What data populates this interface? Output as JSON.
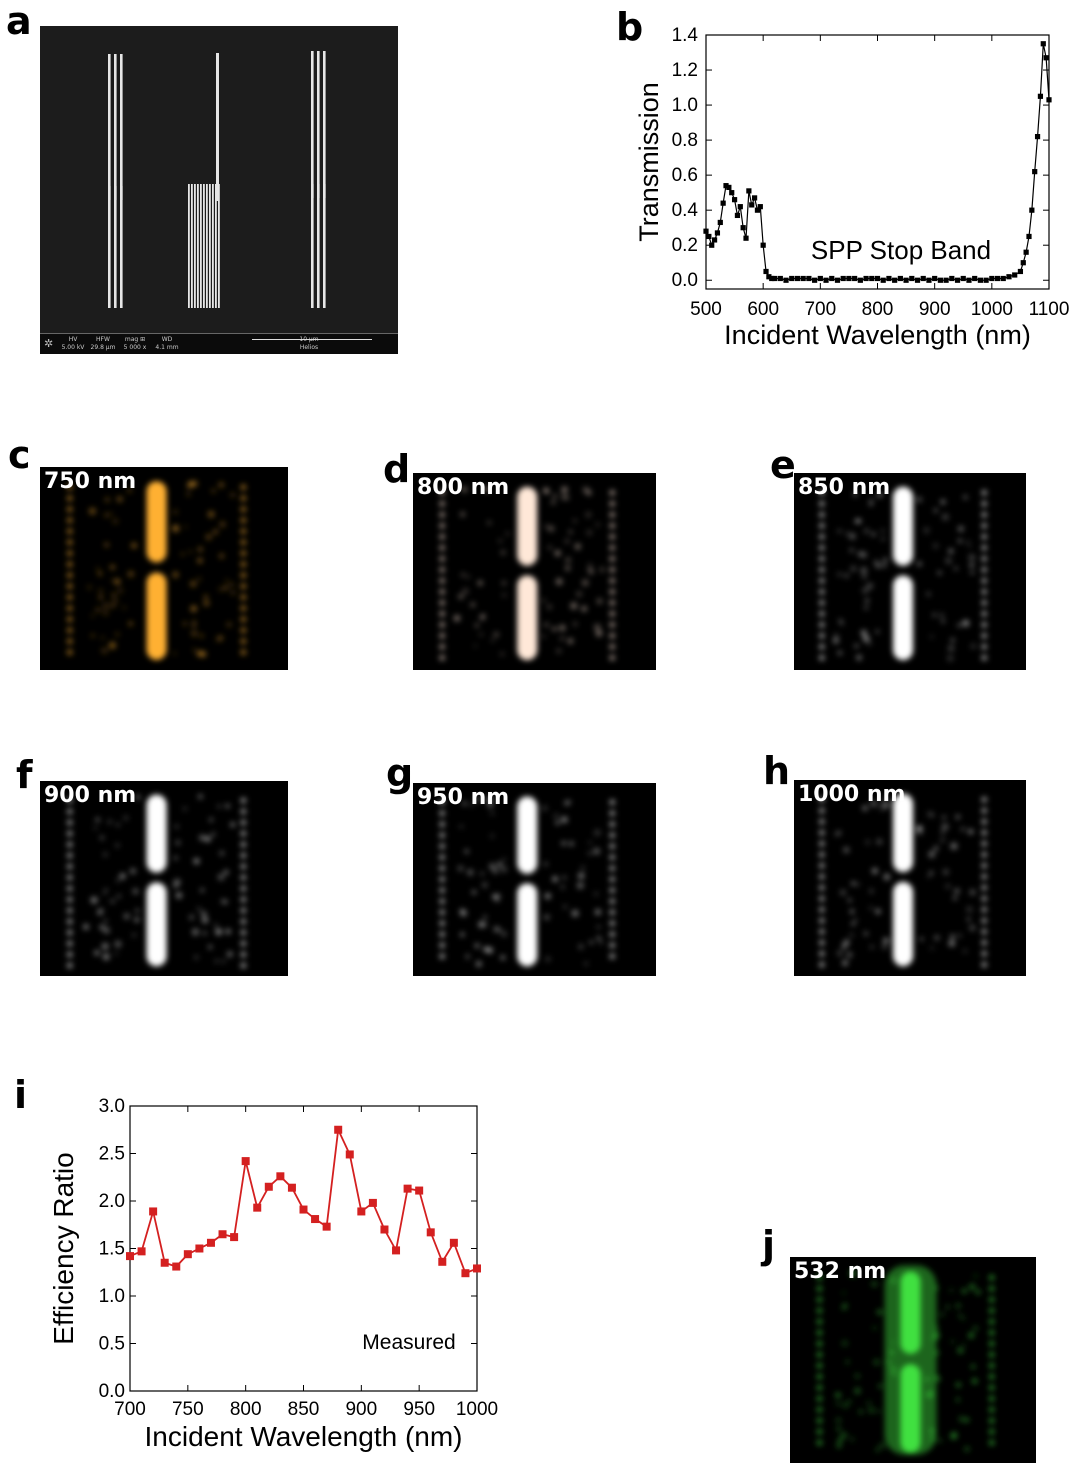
{
  "panels": {
    "a": "a",
    "b": "b",
    "c": "c",
    "d": "d",
    "e": "e",
    "f": "f",
    "g": "g",
    "h": "h",
    "i": "i",
    "j": "j"
  },
  "sem": {
    "info_bar": [
      {
        "key": "HV",
        "value": "5.00 kV"
      },
      {
        "key": "HFW",
        "value": "29.8 µm"
      },
      {
        "key": "mag ⊞",
        "value": "5 000 x"
      },
      {
        "key": "WD",
        "value": "4.1 mm"
      }
    ],
    "scale_label": "10 µm",
    "instrument": "Helios"
  },
  "images": [
    {
      "label": "750 nm",
      "tint": "#ffb030"
    },
    {
      "label": "800 nm",
      "tint": "#ffe8d8"
    },
    {
      "label": "850 nm",
      "tint": "#ffffff"
    },
    {
      "label": "900 nm",
      "tint": "#ffffff"
    },
    {
      "label": "950 nm",
      "tint": "#ffffff"
    },
    {
      "label": "1000 nm",
      "tint": "#ffffff"
    },
    {
      "label": "532 nm",
      "tint": "#40e040"
    }
  ],
  "chart_data": [
    {
      "type": "line",
      "xlabel": "Incident Wavelength (nm)",
      "ylabel": "Transmission",
      "xlim": [
        500,
        1100
      ],
      "ylim": [
        -0.05,
        1.4
      ],
      "xticks": [
        500,
        600,
        700,
        800,
        900,
        1000,
        1100
      ],
      "yticks": [
        "0.0",
        "0.2",
        "0.4",
        "0.6",
        "0.8",
        "1.0",
        "1.2",
        "1.4"
      ],
      "annotation": "SPP Stop Band",
      "marker_color": "#000000",
      "x": [
        500,
        505,
        510,
        515,
        520,
        525,
        530,
        535,
        540,
        545,
        550,
        555,
        560,
        565,
        570,
        575,
        580,
        585,
        590,
        595,
        600,
        605,
        610,
        615,
        620,
        630,
        640,
        650,
        660,
        670,
        680,
        690,
        700,
        710,
        720,
        730,
        740,
        750,
        760,
        770,
        780,
        790,
        800,
        810,
        820,
        830,
        840,
        850,
        860,
        870,
        880,
        890,
        900,
        910,
        920,
        930,
        940,
        950,
        960,
        970,
        980,
        990,
        1000,
        1010,
        1020,
        1030,
        1040,
        1050,
        1055,
        1060,
        1065,
        1070,
        1075,
        1080,
        1085,
        1090,
        1095,
        1100
      ],
      "y": [
        0.28,
        0.25,
        0.2,
        0.23,
        0.27,
        0.33,
        0.44,
        0.54,
        0.53,
        0.5,
        0.46,
        0.37,
        0.42,
        0.3,
        0.24,
        0.51,
        0.43,
        0.47,
        0.4,
        0.42,
        0.2,
        0.05,
        0.02,
        0.01,
        0.01,
        0.01,
        0.0,
        0.01,
        0.01,
        0.01,
        0.01,
        0.0,
        0.01,
        0.0,
        0.01,
        0.0,
        0.01,
        0.01,
        0.01,
        0.0,
        0.01,
        0.01,
        0.01,
        0.0,
        0.01,
        0.0,
        0.01,
        0.0,
        0.01,
        0.0,
        0.01,
        0.0,
        0.01,
        0.0,
        0.0,
        0.01,
        0.0,
        0.01,
        0.0,
        0.01,
        0.0,
        0.0,
        0.01,
        0.01,
        0.01,
        0.02,
        0.03,
        0.05,
        0.1,
        0.16,
        0.25,
        0.4,
        0.62,
        0.82,
        1.05,
        1.35,
        1.27,
        1.03
      ]
    },
    {
      "type": "line",
      "xlabel": "Incident Wavelength (nm)",
      "ylabel": "Efficiency Ratio",
      "xlim": [
        700,
        1000
      ],
      "ylim": [
        0.0,
        3.0
      ],
      "xticks": [
        700,
        750,
        800,
        850,
        900,
        950,
        1000
      ],
      "yticks": [
        "0.0",
        "0.5",
        "1.0",
        "1.5",
        "2.0",
        "2.5",
        "3.0"
      ],
      "annotation": "Measured",
      "series": [
        {
          "name": "Measured",
          "color": "#d42020",
          "x": [
            700,
            710,
            720,
            730,
            740,
            750,
            760,
            770,
            780,
            790,
            800,
            810,
            820,
            830,
            840,
            850,
            860,
            870,
            880,
            890,
            900,
            910,
            920,
            930,
            940,
            950,
            960,
            970,
            980,
            990,
            1000
          ],
          "y": [
            1.42,
            1.47,
            1.89,
            1.35,
            1.31,
            1.44,
            1.5,
            1.56,
            1.65,
            1.62,
            2.42,
            1.93,
            2.15,
            2.26,
            2.14,
            1.91,
            1.81,
            1.73,
            2.75,
            2.49,
            1.89,
            1.98,
            1.7,
            1.48,
            2.13,
            2.11,
            1.67,
            1.36,
            1.56,
            1.24,
            1.29
          ]
        }
      ]
    }
  ]
}
